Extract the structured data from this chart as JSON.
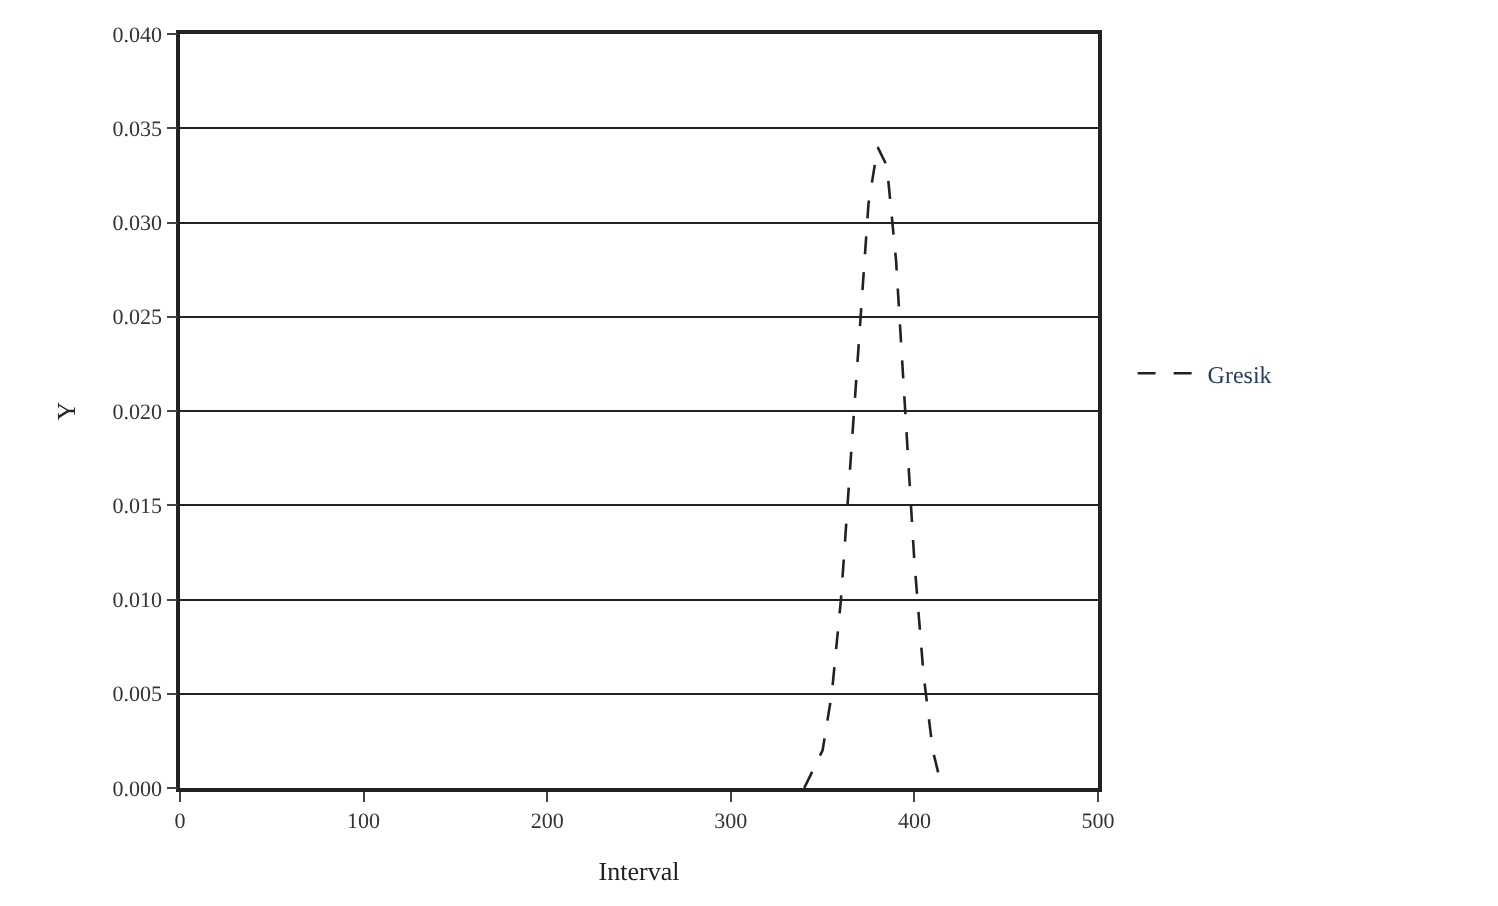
{
  "chart_data": {
    "type": "line",
    "xlabel": "Interval",
    "ylabel": "Y",
    "x": [
      340,
      350,
      355,
      360,
      365,
      370,
      375,
      380,
      385,
      390,
      395,
      400,
      405,
      410,
      415
    ],
    "series": [
      {
        "name": "Gresik",
        "color": "#222222",
        "values": [
          0,
          0.002,
          0.005,
          0.01,
          0.017,
          0.024,
          0.031,
          0.034,
          0.033,
          0.028,
          0.02,
          0.012,
          0.006,
          0.002,
          0
        ]
      }
    ],
    "xlim": [
      0,
      500
    ],
    "xticks": [
      0,
      100,
      200,
      300,
      400,
      500
    ],
    "ylim": [
      0,
      0.04
    ],
    "yticks": [
      {
        "value": 0,
        "label": "0.000"
      },
      {
        "value": 0.005,
        "label": "0.005"
      },
      {
        "value": 0.01,
        "label": "0.010"
      },
      {
        "value": 0.015,
        "label": "0.015"
      },
      {
        "value": 0.02,
        "label": "0.020"
      },
      {
        "value": 0.025,
        "label": "0.025"
      },
      {
        "value": 0.03,
        "label": "0.030"
      },
      {
        "value": 0.035,
        "label": "0.035"
      },
      {
        "value": 0.04,
        "label": "0.040"
      }
    ],
    "grid": "y",
    "legend": "right",
    "marker": "none",
    "line_style": "dashed"
  }
}
